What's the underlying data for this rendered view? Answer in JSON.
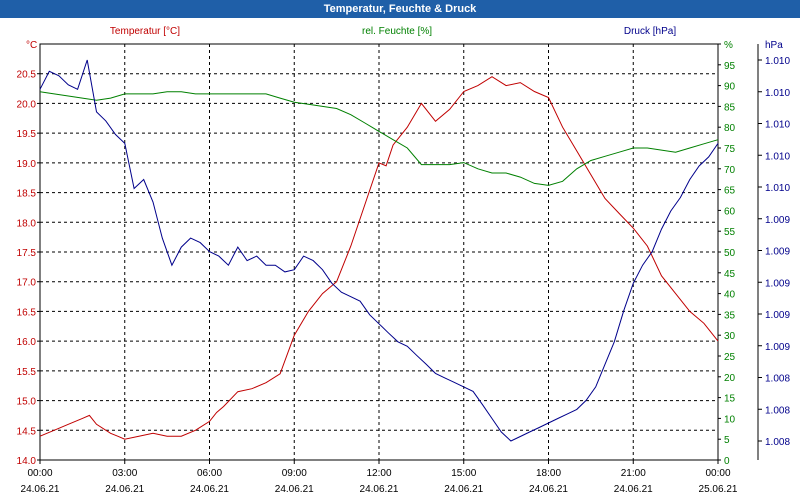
{
  "chart_data": {
    "type": "line",
    "title": "Temperatur, Feuchte & Druck",
    "axes": {
      "temperature": {
        "unit": "°C",
        "label": "Temperatur [°C]",
        "ylim": [
          14.0,
          21.0
        ],
        "ticks": [
          "14.0",
          "14.5",
          "15.0",
          "15.5",
          "16.0",
          "16.5",
          "17.0",
          "17.5",
          "18.0",
          "18.5",
          "19.0",
          "19.5",
          "20.0",
          "20.5"
        ],
        "color": "#c00000"
      },
      "humidity": {
        "unit": "%",
        "label": "rel. Feuchte [%]",
        "ylim": [
          0,
          100
        ],
        "ticks": [
          "0",
          "5",
          "10",
          "15",
          "20",
          "25",
          "30",
          "35",
          "40",
          "45",
          "50",
          "55",
          "60",
          "65",
          "70",
          "75",
          "80",
          "85",
          "90",
          "95",
          "%"
        ],
        "color": "#008000"
      },
      "pressure": {
        "unit": "hPa",
        "label": "Druck [hPa]",
        "tick_labels": [
          "1.010",
          "1.010",
          "1.010",
          "1.010",
          "1.010",
          "1.009",
          "1.009",
          "1.009",
          "1.009",
          "1.009",
          "1.008",
          "1.008",
          "1.008"
        ],
        "color": "#00008b"
      }
    },
    "x_ticks": [
      {
        "time": "00:00",
        "date": "24.06.21"
      },
      {
        "time": "03:00",
        "date": "24.06.21"
      },
      {
        "time": "06:00",
        "date": "24.06.21"
      },
      {
        "time": "09:00",
        "date": "24.06.21"
      },
      {
        "time": "12:00",
        "date": "24.06.21"
      },
      {
        "time": "15:00",
        "date": "24.06.21"
      },
      {
        "time": "18:00",
        "date": "24.06.21"
      },
      {
        "time": "21:00",
        "date": "24.06.21"
      },
      {
        "time": "00:00",
        "date": "25.06.21"
      }
    ],
    "grid": true,
    "series": [
      {
        "name": "Temperatur [°C]",
        "axis": "temperature",
        "color": "#c00000",
        "x": [
          0,
          0.5,
          1,
          1.5,
          1.75,
          2,
          2.5,
          2.75,
          3,
          3.5,
          4,
          4.5,
          5,
          5.5,
          6,
          6.25,
          6.5,
          7,
          7.5,
          8,
          8.5,
          9,
          9.5,
          10,
          10.5,
          11,
          11.5,
          12,
          12.25,
          12.5,
          13,
          13.5,
          14,
          14.5,
          15,
          15.5,
          16,
          16.5,
          17,
          17.5,
          18,
          18.5,
          19,
          19.5,
          20,
          20.5,
          21,
          21.5,
          22,
          22.5,
          23,
          23.5,
          24
        ],
        "y": [
          14.4,
          14.5,
          14.6,
          14.7,
          14.75,
          14.6,
          14.45,
          14.4,
          14.35,
          14.4,
          14.45,
          14.4,
          14.4,
          14.5,
          14.65,
          14.8,
          14.9,
          15.15,
          15.2,
          15.3,
          15.45,
          16.1,
          16.5,
          16.8,
          17.0,
          17.6,
          18.3,
          19.0,
          18.95,
          19.3,
          19.6,
          20.0,
          19.7,
          19.9,
          20.2,
          20.3,
          20.45,
          20.3,
          20.35,
          20.2,
          20.1,
          19.6,
          19.2,
          18.8,
          18.4,
          18.15,
          17.9,
          17.6,
          17.1,
          16.8,
          16.5,
          16.3,
          16.0
        ]
      },
      {
        "name": "rel. Feuchte [%]",
        "axis": "humidity",
        "color": "#008000",
        "x": [
          0,
          0.5,
          1,
          1.5,
          2,
          2.5,
          3,
          3.5,
          4,
          4.5,
          5,
          5.5,
          6,
          6.5,
          7,
          7.5,
          8,
          8.5,
          9,
          9.5,
          10,
          10.5,
          11,
          11.5,
          12,
          12.5,
          13,
          13.5,
          14,
          14.5,
          15,
          15.5,
          16,
          16.5,
          17,
          17.5,
          18,
          18.5,
          19,
          19.5,
          20,
          20.5,
          21,
          21.5,
          22,
          22.5,
          23,
          23.5,
          24
        ],
        "y": [
          88.5,
          88,
          87.5,
          87,
          86.5,
          87,
          88,
          88,
          88,
          88.5,
          88.5,
          88,
          88,
          88,
          88,
          88,
          88,
          87,
          86,
          85.5,
          85,
          84.5,
          83,
          81,
          79,
          77,
          75,
          71,
          71,
          71,
          71.5,
          70,
          69,
          69,
          68,
          66.5,
          66,
          67,
          70,
          72,
          73,
          74,
          75,
          75,
          74.5,
          74,
          75,
          76,
          77
        ]
      },
      {
        "name": "Druck [hPa]",
        "axis": "pressure",
        "color": "#00008b",
        "x": [
          0,
          0.33,
          0.67,
          1,
          1.33,
          1.67,
          2,
          2.33,
          2.67,
          3,
          3.33,
          3.67,
          4,
          4.33,
          4.67,
          5,
          5.33,
          5.67,
          6,
          6.33,
          6.67,
          7,
          7.33,
          7.67,
          8,
          8.33,
          8.67,
          9,
          9.33,
          9.67,
          10,
          10.33,
          10.67,
          11,
          11.33,
          11.67,
          12,
          12.33,
          12.67,
          13,
          13.33,
          13.67,
          14,
          14.33,
          14.67,
          15,
          15.33,
          15.67,
          16,
          16.33,
          16.67,
          17,
          17.33,
          17.67,
          18,
          18.33,
          18.67,
          19,
          19.33,
          19.67,
          20,
          20.33,
          20.67,
          21,
          21.33,
          21.67,
          22,
          22.33,
          22.67,
          23,
          23.33,
          23.67,
          24
        ],
        "y": [
          1009.72,
          1009.8,
          1009.78,
          1009.74,
          1009.72,
          1009.85,
          1009.62,
          1009.58,
          1009.52,
          1009.48,
          1009.28,
          1009.32,
          1009.22,
          1009.06,
          1008.94,
          1009.02,
          1009.06,
          1009.04,
          1009.0,
          1008.98,
          1008.94,
          1009.02,
          1008.96,
          1008.98,
          1008.94,
          1008.94,
          1008.91,
          1008.92,
          1008.98,
          1008.96,
          1008.92,
          1008.86,
          1008.82,
          1008.8,
          1008.78,
          1008.72,
          1008.68,
          1008.64,
          1008.6,
          1008.58,
          1008.54,
          1008.5,
          1008.46,
          1008.44,
          1008.42,
          1008.4,
          1008.38,
          1008.32,
          1008.26,
          1008.2,
          1008.16,
          1008.18,
          1008.2,
          1008.22,
          1008.24,
          1008.26,
          1008.28,
          1008.3,
          1008.34,
          1008.4,
          1008.5,
          1008.6,
          1008.74,
          1008.86,
          1008.94,
          1009.0,
          1009.1,
          1009.18,
          1009.24,
          1009.32,
          1009.38,
          1009.42,
          1009.48
        ]
      }
    ]
  }
}
